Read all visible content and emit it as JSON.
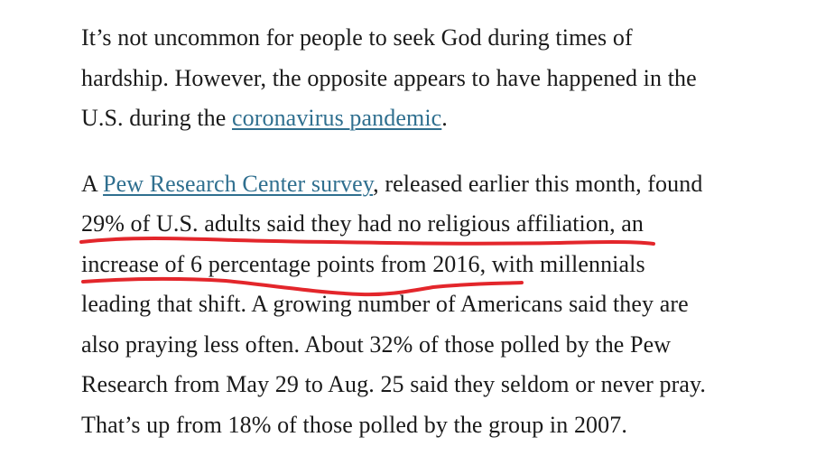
{
  "article": {
    "paragraph_1": {
      "line_1": "It’s not uncommon for people to seek God during times of",
      "line_2": "hardship. However, the opposite appears to have happened in the",
      "line_3_before": "U.S. during the ",
      "line_3_link": "coronavirus pandemic",
      "line_3_after": "."
    },
    "paragraph_2": {
      "line_1_before": "A ",
      "line_1_link": "Pew Research Center survey",
      "line_1_after": ", released earlier this month, found",
      "line_2": "29% of U.S. adults said they had no religious affiliation, an",
      "line_3": "increase of 6 percentage points from 2016, with millennials",
      "line_4": "leading that shift. A growing number of Americans said they are",
      "line_5": "also praying less often. About 32% of those polled by the Pew",
      "line_6": "Research from May 29 to Aug. 25 said they seldom or never pray.",
      "line_7": "That’s up from 18% of those polled by the group in 2007."
    }
  },
  "colors": {
    "text": "#1a1a1a",
    "link": "#2f6f8f",
    "annotation": "#e3262b"
  }
}
